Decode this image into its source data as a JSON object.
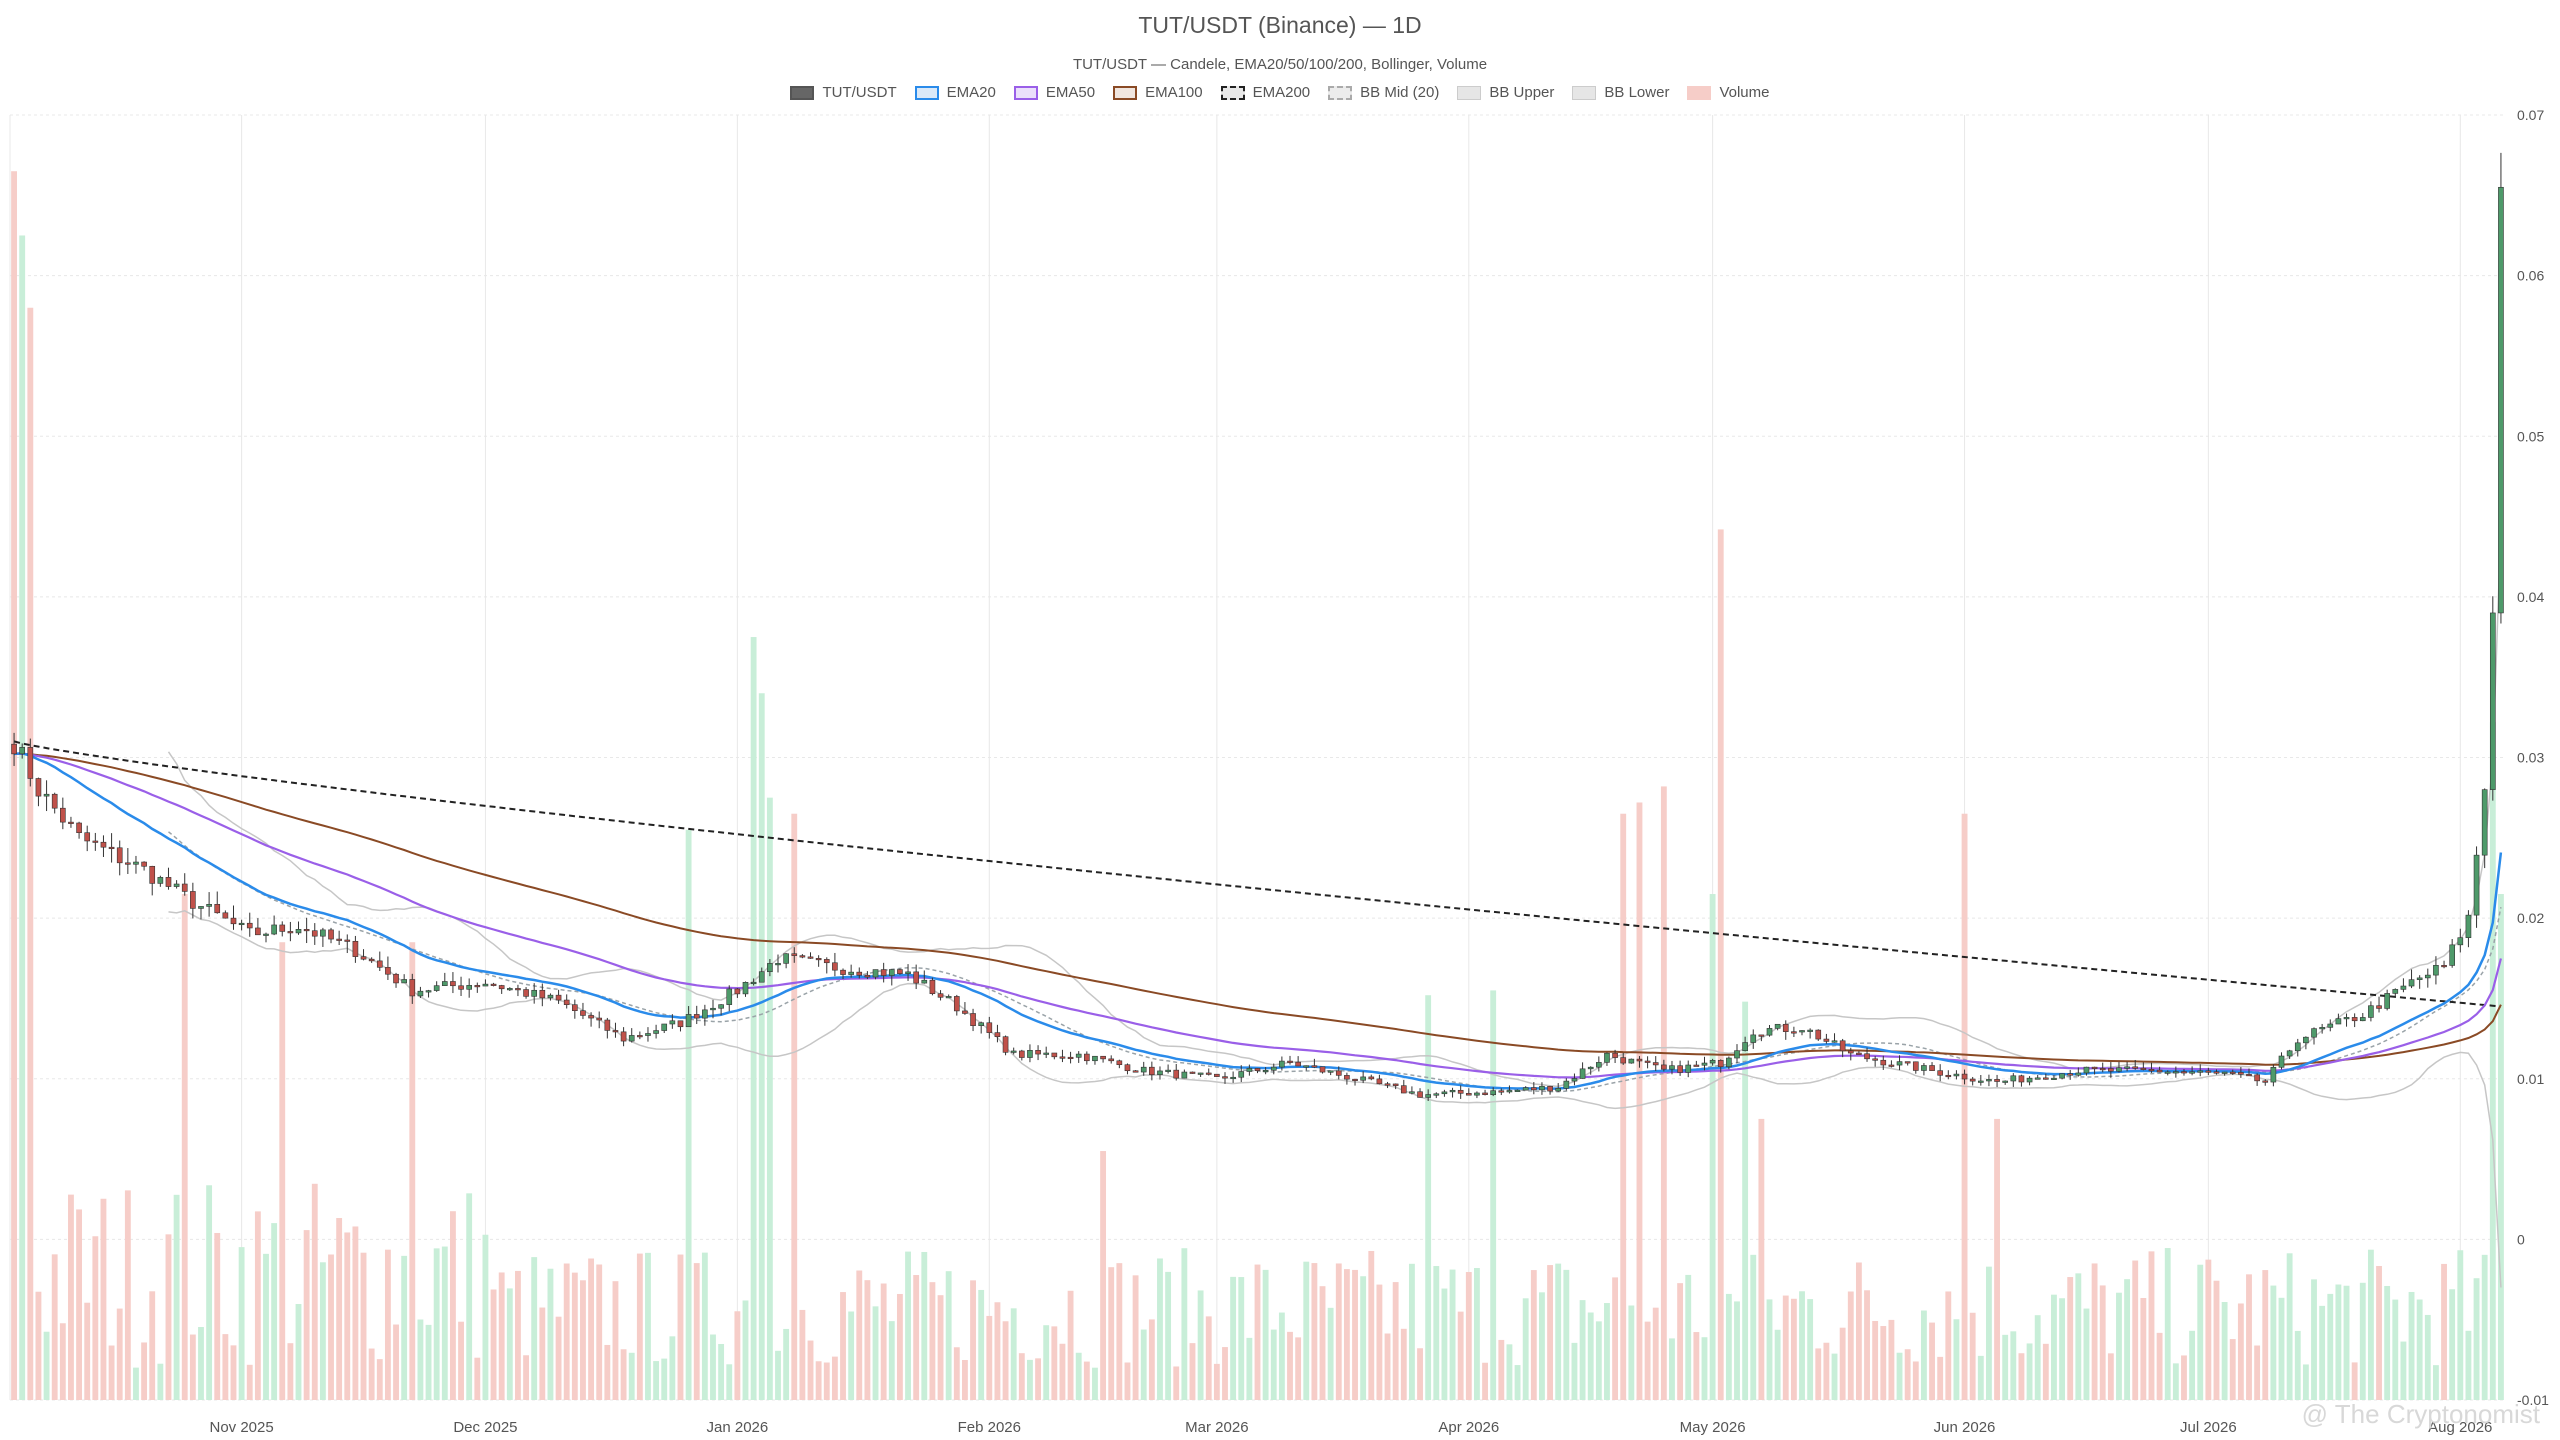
{
  "title": "TUT/USDT (Binance) — 1D",
  "subtitle": "TUT/USDT — Candele, EMA20/50/100/200, Bollinger, Volume",
  "watermark": "@ The Cryptonomist",
  "colors": {
    "up": "#4e9a6a",
    "down": "#c0514a",
    "vol_up": "#c8eed8",
    "vol_down": "#f6cdc8",
    "ema20": "#2a8bea",
    "ema50": "#9a5fe8",
    "ema100": "#8a4a25",
    "ema200": "#222222",
    "bb_mid": "#9aa3a8",
    "bb_band": "#c6c6c6",
    "grid": "#e8e8e8"
  },
  "legend": [
    {
      "label": "TUT/USDT",
      "key": "price"
    },
    {
      "label": "EMA20",
      "key": "ema20"
    },
    {
      "label": "EMA50",
      "key": "ema50"
    },
    {
      "label": "EMA100",
      "key": "ema100"
    },
    {
      "label": "EMA200",
      "key": "ema200"
    },
    {
      "label": "BB Mid (20)",
      "key": "bb_mid"
    },
    {
      "label": "BB Upper",
      "key": "bb_upper"
    },
    {
      "label": "BB Lower",
      "key": "bb_lower"
    },
    {
      "label": "Volume",
      "key": "volume"
    }
  ],
  "chart_data": {
    "type": "candlestick",
    "x_start": "2025-10-04",
    "x_end": "2026-08-06",
    "x_ticks": [
      {
        "date": "2025-11-01",
        "label": "Nov 2025"
      },
      {
        "date": "2025-12-01",
        "label": "Dec 2025"
      },
      {
        "date": "2026-01-01",
        "label": "Jan 2026"
      },
      {
        "date": "2026-02-01",
        "label": "Feb 2026"
      },
      {
        "date": "2026-03-01",
        "label": "Mar 2026"
      },
      {
        "date": "2026-04-01",
        "label": "Apr 2026"
      },
      {
        "date": "2026-05-01",
        "label": "May 2026"
      },
      {
        "date": "2026-06-01",
        "label": "Jun 2026"
      },
      {
        "date": "2026-07-01",
        "label": "Jul 2026"
      },
      {
        "date": "2026-08-01",
        "label": "Aug 2026"
      }
    ],
    "y_ticks": [
      "-0.01",
      "0",
      "0.01",
      "0.02",
      "0.03",
      "0.04",
      "0.05",
      "0.06",
      "0.07"
    ],
    "ylim": [
      -0.01,
      0.07
    ],
    "grid": true,
    "legend_position": "top",
    "price_anchors": [
      [
        "2025-10-04",
        0.031
      ],
      [
        "2025-10-07",
        0.028
      ],
      [
        "2025-10-12",
        0.025
      ],
      [
        "2025-10-20",
        0.023
      ],
      [
        "2025-10-26",
        0.021
      ],
      [
        "2025-11-02",
        0.019
      ],
      [
        "2025-11-08",
        0.0195
      ],
      [
        "2025-11-15",
        0.018
      ],
      [
        "2025-11-22",
        0.0155
      ],
      [
        "2025-12-01",
        0.016
      ],
      [
        "2025-12-10",
        0.0148
      ],
      [
        "2025-12-18",
        0.0125
      ],
      [
        "2025-12-25",
        0.0135
      ],
      [
        "2026-01-01",
        0.0155
      ],
      [
        "2026-01-06",
        0.0175
      ],
      [
        "2026-01-12",
        0.017
      ],
      [
        "2026-01-22",
        0.0165
      ],
      [
        "2026-01-28",
        0.0145
      ],
      [
        "2026-02-04",
        0.0115
      ],
      [
        "2026-02-12",
        0.0115
      ],
      [
        "2026-02-20",
        0.0105
      ],
      [
        "2026-03-01",
        0.01
      ],
      [
        "2026-03-10",
        0.011
      ],
      [
        "2026-03-18",
        0.01
      ],
      [
        "2026-03-26",
        0.009
      ],
      [
        "2026-04-05",
        0.0092
      ],
      [
        "2026-04-12",
        0.0095
      ],
      [
        "2026-04-18",
        0.0115
      ],
      [
        "2026-04-25",
        0.0105
      ],
      [
        "2026-05-02",
        0.011
      ],
      [
        "2026-05-06",
        0.013
      ],
      [
        "2026-05-12",
        0.0132
      ],
      [
        "2026-05-18",
        0.0115
      ],
      [
        "2026-05-28",
        0.0105
      ],
      [
        "2026-06-05",
        0.0098
      ],
      [
        "2026-06-15",
        0.0105
      ],
      [
        "2026-06-25",
        0.0105
      ],
      [
        "2026-07-03",
        0.0103
      ],
      [
        "2026-07-08",
        0.0098
      ],
      [
        "2026-07-12",
        0.0125
      ],
      [
        "2026-07-20",
        0.014
      ],
      [
        "2026-07-26",
        0.016
      ],
      [
        "2026-07-30",
        0.017
      ],
      [
        "2026-08-02",
        0.02
      ],
      [
        "2026-08-04",
        0.028
      ],
      [
        "2026-08-05",
        0.039
      ],
      [
        "2026-08-06",
        0.0655
      ]
    ],
    "volume_spikes": [
      [
        "2025-10-04",
        0.0665
      ],
      [
        "2025-10-05",
        0.0625
      ],
      [
        "2025-10-06",
        0.058
      ],
      [
        "2025-10-25",
        0.0215
      ],
      [
        "2025-11-06",
        0.0185
      ],
      [
        "2025-11-22",
        0.0185
      ],
      [
        "2025-12-26",
        0.0255
      ],
      [
        "2026-01-03",
        0.0375
      ],
      [
        "2026-01-04",
        0.034
      ],
      [
        "2026-01-05",
        0.0275
      ],
      [
        "2026-01-08",
        0.0265
      ],
      [
        "2026-02-15",
        0.0055
      ],
      [
        "2026-03-27",
        0.0152
      ],
      [
        "2026-04-04",
        0.0155
      ],
      [
        "2026-04-20",
        0.0265
      ],
      [
        "2026-04-22",
        0.0272
      ],
      [
        "2026-04-25",
        0.0282
      ],
      [
        "2026-05-01",
        0.0215
      ],
      [
        "2026-05-02",
        0.0442
      ],
      [
        "2026-05-05",
        0.0148
      ],
      [
        "2026-05-07",
        0.0075
      ],
      [
        "2026-06-01",
        0.0265
      ],
      [
        "2026-06-05",
        0.0075
      ],
      [
        "2026-08-05",
        0.0322
      ],
      [
        "2026-08-06",
        0.0215
      ]
    ],
    "ema20_end": 0.024,
    "ema50_end": 0.0175,
    "ema100_end": 0.0142,
    "ema200_end": 0.0145,
    "series": [
      {
        "name": "TUT/USDT"
      },
      {
        "name": "EMA20"
      },
      {
        "name": "EMA50"
      },
      {
        "name": "EMA100"
      },
      {
        "name": "EMA200"
      },
      {
        "name": "BB Mid (20)"
      },
      {
        "name": "BB Upper"
      },
      {
        "name": "BB Lower"
      },
      {
        "name": "Volume"
      }
    ]
  }
}
